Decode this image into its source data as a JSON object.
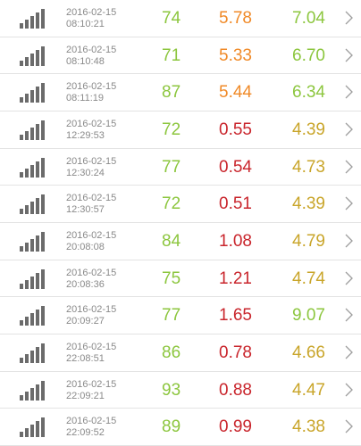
{
  "colors": {
    "green": "#8cc63e",
    "orange": "#f08a28",
    "red": "#c9252c",
    "yellow": "#c9a52a",
    "timestamp": "#8a8a8a",
    "signal": "#6b6b6b"
  },
  "icons": {
    "signal": "signal-strength-icon",
    "chevron": "chevron-right-icon"
  },
  "rows": [
    {
      "date": "2016-02-15",
      "time": "08:10:21",
      "v1": "74",
      "v1_color": "green",
      "v2": "5.78",
      "v2_color": "orange",
      "v3": "7.04",
      "v3_color": "green"
    },
    {
      "date": "2016-02-15",
      "time": "08:10:48",
      "v1": "71",
      "v1_color": "green",
      "v2": "5.33",
      "v2_color": "orange",
      "v3": "6.70",
      "v3_color": "green"
    },
    {
      "date": "2016-02-15",
      "time": "08:11:19",
      "v1": "87",
      "v1_color": "green",
      "v2": "5.44",
      "v2_color": "orange",
      "v3": "6.34",
      "v3_color": "green"
    },
    {
      "date": "2016-02-15",
      "time": "12:29:53",
      "v1": "72",
      "v1_color": "green",
      "v2": "0.55",
      "v2_color": "red",
      "v3": "4.39",
      "v3_color": "yellow"
    },
    {
      "date": "2016-02-15",
      "time": "12:30:24",
      "v1": "77",
      "v1_color": "green",
      "v2": "0.54",
      "v2_color": "red",
      "v3": "4.73",
      "v3_color": "yellow"
    },
    {
      "date": "2016-02-15",
      "time": "12:30:57",
      "v1": "72",
      "v1_color": "green",
      "v2": "0.51",
      "v2_color": "red",
      "v3": "4.39",
      "v3_color": "yellow"
    },
    {
      "date": "2016-02-15",
      "time": "20:08:08",
      "v1": "84",
      "v1_color": "green",
      "v2": "1.08",
      "v2_color": "red",
      "v3": "4.79",
      "v3_color": "yellow"
    },
    {
      "date": "2016-02-15",
      "time": "20:08:36",
      "v1": "75",
      "v1_color": "green",
      "v2": "1.21",
      "v2_color": "red",
      "v3": "4.74",
      "v3_color": "yellow"
    },
    {
      "date": "2016-02-15",
      "time": "20:09:27",
      "v1": "77",
      "v1_color": "green",
      "v2": "1.65",
      "v2_color": "red",
      "v3": "9.07",
      "v3_color": "green"
    },
    {
      "date": "2016-02-15",
      "time": "22:08:51",
      "v1": "86",
      "v1_color": "green",
      "v2": "0.78",
      "v2_color": "red",
      "v3": "4.66",
      "v3_color": "yellow"
    },
    {
      "date": "2016-02-15",
      "time": "22:09:21",
      "v1": "93",
      "v1_color": "green",
      "v2": "0.88",
      "v2_color": "red",
      "v3": "4.47",
      "v3_color": "yellow"
    },
    {
      "date": "2016-02-15",
      "time": "22:09:52",
      "v1": "89",
      "v1_color": "green",
      "v2": "0.99",
      "v2_color": "red",
      "v3": "4.38",
      "v3_color": "yellow"
    }
  ]
}
